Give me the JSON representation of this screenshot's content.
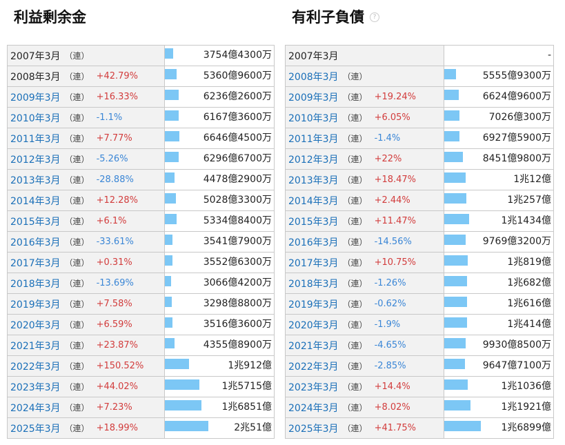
{
  "left_panel": {
    "title": "利益剰余金",
    "rows": [
      {
        "year": "2007年3月",
        "cons": "（連）",
        "change": "",
        "value": "3754億4300万",
        "bar": 0.19
      },
      {
        "year": "2008年3月",
        "cons": "（連）",
        "change": "+42.79%",
        "value": "5360億9600万",
        "bar": 0.27
      },
      {
        "year": "2009年3月",
        "cons": "（連）",
        "change": "+16.33%",
        "value": "6236億2600万",
        "bar": 0.31
      },
      {
        "year": "2010年3月",
        "cons": "（連）",
        "change": "-1.1%",
        "value": "6167億3600万",
        "bar": 0.31
      },
      {
        "year": "2011年3月",
        "cons": "（連）",
        "change": "+7.77%",
        "value": "6646億4500万",
        "bar": 0.33
      },
      {
        "year": "2012年3月",
        "cons": "（連）",
        "change": "-5.26%",
        "value": "6296億6700万",
        "bar": 0.31
      },
      {
        "year": "2013年3月",
        "cons": "（連）",
        "change": "-28.88%",
        "value": "4478億2900万",
        "bar": 0.22
      },
      {
        "year": "2014年3月",
        "cons": "（連）",
        "change": "+12.28%",
        "value": "5028億3300万",
        "bar": 0.25
      },
      {
        "year": "2015年3月",
        "cons": "（連）",
        "change": "+6.1%",
        "value": "5334億8400万",
        "bar": 0.27
      },
      {
        "year": "2016年3月",
        "cons": "（連）",
        "change": "-33.61%",
        "value": "3541億7900万",
        "bar": 0.18
      },
      {
        "year": "2017年3月",
        "cons": "（連）",
        "change": "+0.31%",
        "value": "3552億6300万",
        "bar": 0.18
      },
      {
        "year": "2018年3月",
        "cons": "（連）",
        "change": "-13.69%",
        "value": "3066億4200万",
        "bar": 0.15
      },
      {
        "year": "2019年3月",
        "cons": "（連）",
        "change": "+7.58%",
        "value": "3298億8800万",
        "bar": 0.16
      },
      {
        "year": "2020年3月",
        "cons": "（連）",
        "change": "+6.59%",
        "value": "3516億3600万",
        "bar": 0.17
      },
      {
        "year": "2021年3月",
        "cons": "（連）",
        "change": "+23.87%",
        "value": "4355億8900万",
        "bar": 0.22
      },
      {
        "year": "2022年3月",
        "cons": "（連）",
        "change": "+150.52%",
        "value": "1兆912億",
        "bar": 0.55
      },
      {
        "year": "2023年3月",
        "cons": "（連）",
        "change": "+44.02%",
        "value": "1兆5715億",
        "bar": 0.79
      },
      {
        "year": "2024年3月",
        "cons": "（連）",
        "change": "+7.23%",
        "value": "1兆6851億",
        "bar": 0.84
      },
      {
        "year": "2025年3月",
        "cons": "（連）",
        "change": "+18.99%",
        "value": "2兆51億",
        "bar": 1.0
      }
    ]
  },
  "right_panel": {
    "title": "有利子負債",
    "help_icon": "?",
    "rows": [
      {
        "year": "2007年3月",
        "cons": "",
        "change": "",
        "value": "-",
        "bar": 0
      },
      {
        "year": "2008年3月",
        "cons": "（連）",
        "change": "",
        "value": "5555億9300万",
        "bar": 0.33
      },
      {
        "year": "2009年3月",
        "cons": "（連）",
        "change": "+19.24%",
        "value": "6624億9600万",
        "bar": 0.39
      },
      {
        "year": "2010年3月",
        "cons": "（連）",
        "change": "+6.05%",
        "value": "7026億300万",
        "bar": 0.42
      },
      {
        "year": "2011年3月",
        "cons": "（連）",
        "change": "-1.4%",
        "value": "6927億5900万",
        "bar": 0.41
      },
      {
        "year": "2012年3月",
        "cons": "（連）",
        "change": "+22%",
        "value": "8451億9800万",
        "bar": 0.5
      },
      {
        "year": "2013年3月",
        "cons": "（連）",
        "change": "+18.47%",
        "value": "1兆12億",
        "bar": 0.59
      },
      {
        "year": "2014年3月",
        "cons": "（連）",
        "change": "+2.44%",
        "value": "1兆257億",
        "bar": 0.61
      },
      {
        "year": "2015年3月",
        "cons": "（連）",
        "change": "+11.47%",
        "value": "1兆1434億",
        "bar": 0.68
      },
      {
        "year": "2016年3月",
        "cons": "（連）",
        "change": "-14.56%",
        "value": "9769億3200万",
        "bar": 0.58
      },
      {
        "year": "2017年3月",
        "cons": "（連）",
        "change": "+10.75%",
        "value": "1兆819億",
        "bar": 0.64
      },
      {
        "year": "2018年3月",
        "cons": "（連）",
        "change": "-1.26%",
        "value": "1兆682億",
        "bar": 0.63
      },
      {
        "year": "2019年3月",
        "cons": "（連）",
        "change": "-0.62%",
        "value": "1兆616億",
        "bar": 0.63
      },
      {
        "year": "2020年3月",
        "cons": "（連）",
        "change": "-1.9%",
        "value": "1兆414億",
        "bar": 0.62
      },
      {
        "year": "2021年3月",
        "cons": "（連）",
        "change": "-4.65%",
        "value": "9930億8500万",
        "bar": 0.59
      },
      {
        "year": "2022年3月",
        "cons": "（連）",
        "change": "-2.85%",
        "value": "9647億7100万",
        "bar": 0.57
      },
      {
        "year": "2023年3月",
        "cons": "（連）",
        "change": "+14.4%",
        "value": "1兆1036億",
        "bar": 0.65
      },
      {
        "year": "2024年3月",
        "cons": "（連）",
        "change": "+8.02%",
        "value": "1兆1921億",
        "bar": 0.71
      },
      {
        "year": "2025年3月",
        "cons": "（連）",
        "change": "+41.75%",
        "value": "1兆6899億",
        "bar": 1.0
      }
    ]
  },
  "colors": {
    "bar": "#7cc7f5",
    "increase": "#d23c3c",
    "decrease": "#3a86d6",
    "year_link": "#1a6fb8",
    "label_bg": "#f2f2f2",
    "border": "#c8c8c8"
  }
}
